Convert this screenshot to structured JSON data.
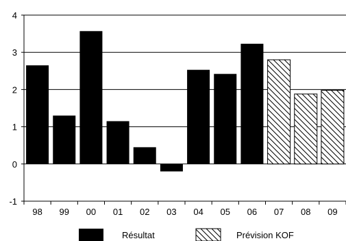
{
  "chart_data": {
    "type": "bar",
    "categories": [
      "98",
      "99",
      "00",
      "01",
      "02",
      "03",
      "04",
      "05",
      "06",
      "07",
      "08",
      "09"
    ],
    "series": [
      {
        "name": "Résultat",
        "fill": "solid",
        "color": "#000000",
        "values": [
          2.65,
          1.3,
          3.57,
          1.15,
          0.45,
          -0.2,
          2.53,
          2.42,
          3.23,
          null,
          null,
          null
        ]
      },
      {
        "name": "Prévision KOF",
        "fill": "hatched",
        "color": "#000000",
        "values": [
          null,
          null,
          null,
          null,
          null,
          null,
          null,
          null,
          null,
          2.8,
          1.88,
          1.98
        ]
      }
    ],
    "ylim": [
      -1,
      4
    ],
    "yticks": [
      "-1",
      "0",
      "1",
      "2",
      "3",
      "4"
    ],
    "grid": true,
    "legend_position": "bottom"
  }
}
